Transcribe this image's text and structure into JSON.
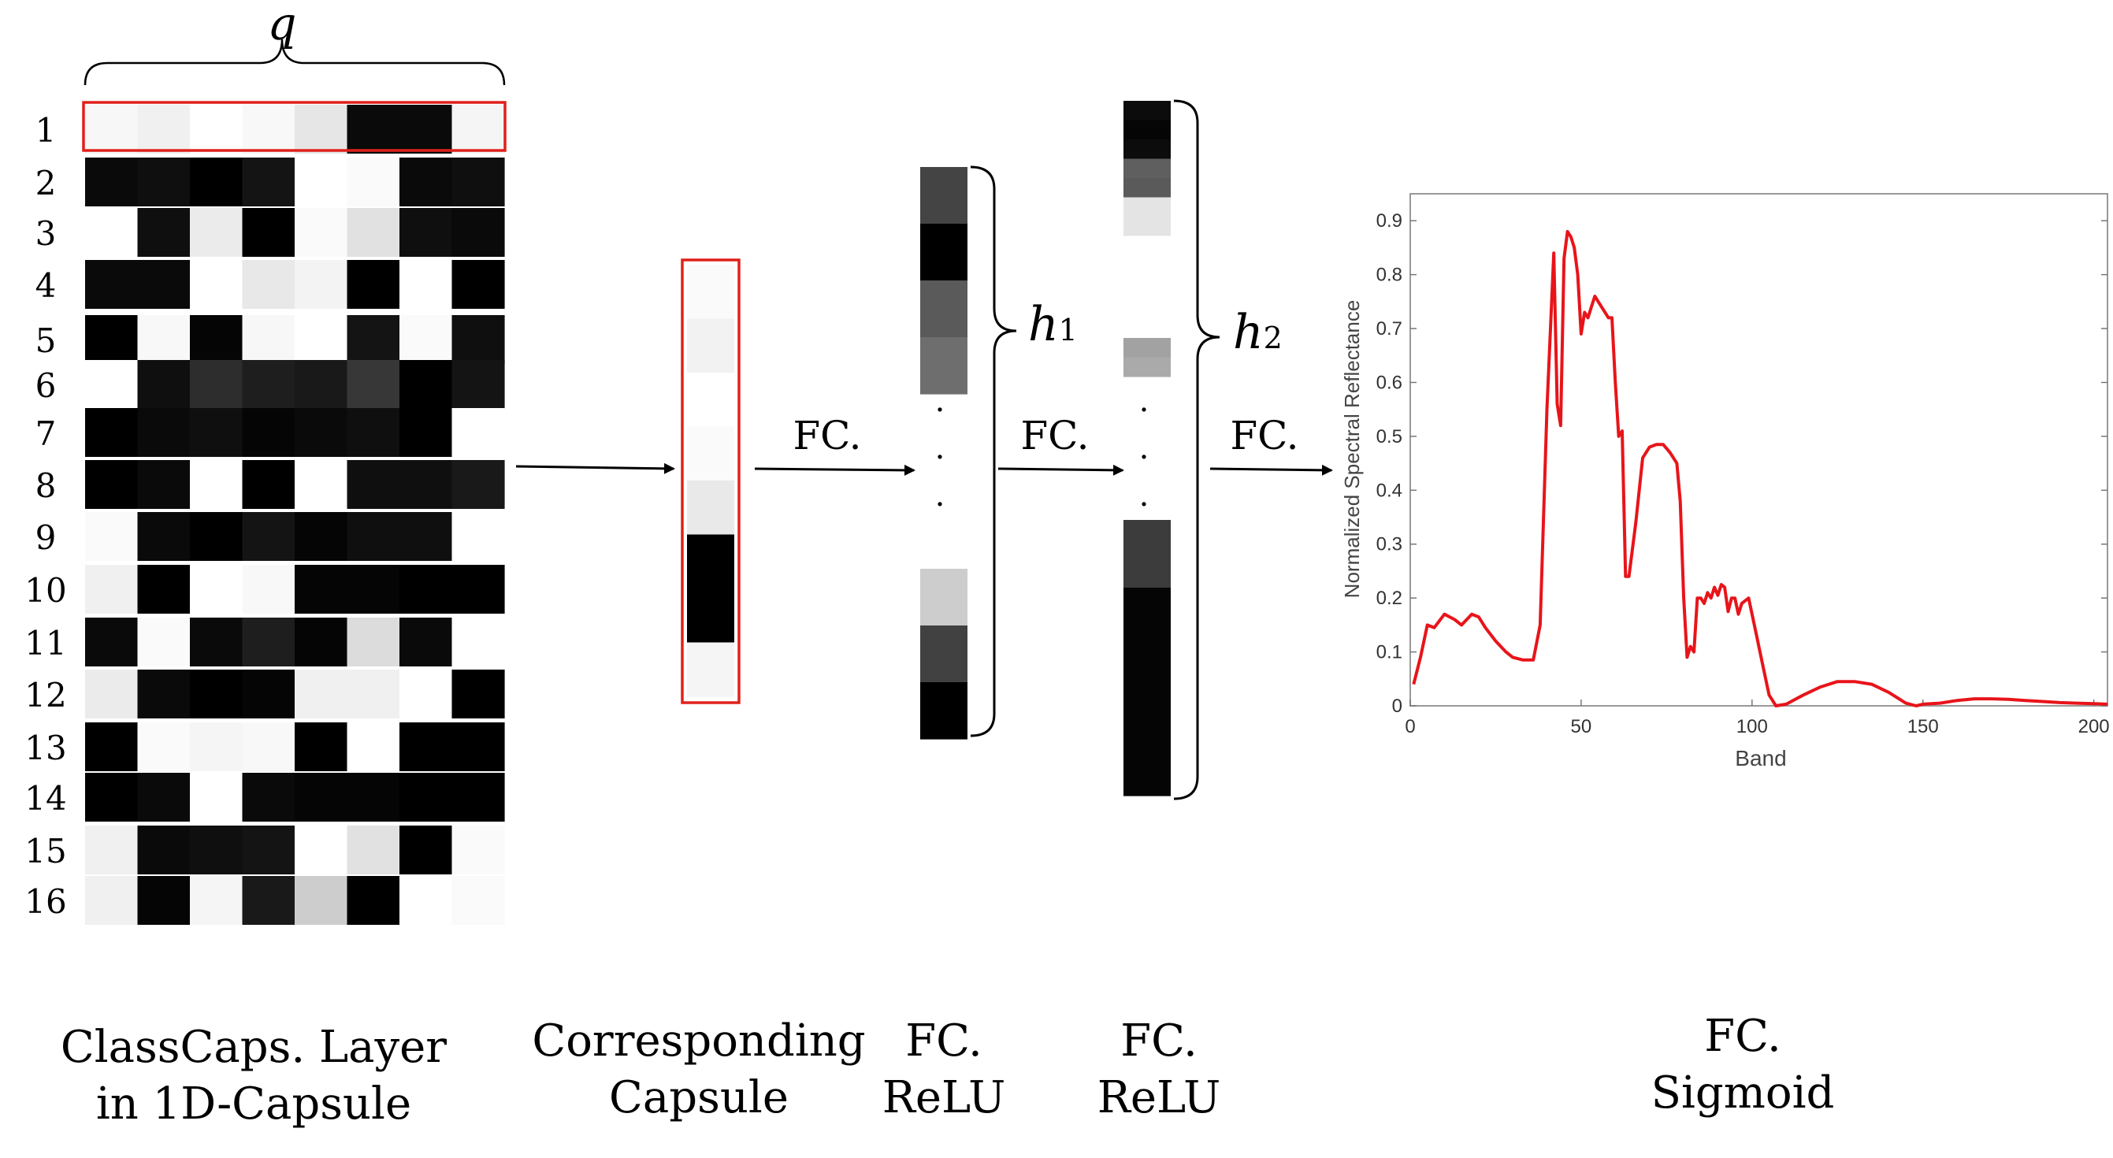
{
  "matrix_label": "q",
  "row_labels": [
    "1",
    "2",
    "3",
    "4",
    "5",
    "6",
    "7",
    "8",
    "9",
    "10",
    "11",
    "12",
    "13",
    "14",
    "15",
    "16"
  ],
  "capsule_matrix": [
    [
      247,
      240,
      255,
      248,
      230,
      10,
      10,
      245
    ],
    [
      10,
      15,
      0,
      20,
      255,
      250,
      10,
      15
    ],
    [
      255,
      15,
      235,
      0,
      250,
      225,
      15,
      10
    ],
    [
      10,
      10,
      255,
      232,
      243,
      0,
      255,
      0
    ],
    [
      0,
      248,
      5,
      247,
      255,
      20,
      250,
      15
    ],
    [
      255,
      15,
      45,
      30,
      25,
      55,
      0,
      20
    ],
    [
      0,
      10,
      15,
      5,
      10,
      15,
      0,
      255
    ],
    [
      0,
      10,
      255,
      0,
      255,
      15,
      15,
      25
    ],
    [
      250,
      10,
      0,
      20,
      5,
      15,
      15,
      255
    ],
    [
      240,
      0,
      255,
      248,
      5,
      5,
      0,
      0
    ],
    [
      10,
      250,
      10,
      30,
      5,
      220,
      10,
      255
    ],
    [
      235,
      10,
      0,
      5,
      240,
      240,
      255,
      0
    ],
    [
      0,
      250,
      245,
      248,
      0,
      255,
      0,
      0
    ],
    [
      0,
      10,
      255,
      10,
      5,
      5,
      0,
      0
    ],
    [
      240,
      10,
      15,
      20,
      255,
      225,
      0,
      250
    ],
    [
      240,
      5,
      245,
      25,
      205,
      0,
      255,
      250
    ]
  ],
  "capsule_vector": [
    250,
    242,
    255,
    250,
    233,
    0,
    0,
    245
  ],
  "h1_top": [
    68,
    0,
    90,
    110
  ],
  "h1_bottom": [
    205,
    65,
    0
  ],
  "h2_top": [
    12,
    5,
    12,
    95,
    90,
    228,
    228,
    255,
    162,
    170
  ],
  "h2_bottom": [
    60,
    5,
    5,
    5,
    5
  ],
  "layer_labels": {
    "h1_main": "h",
    "h1_sub": "1",
    "h2_main": "h",
    "h2_sub": "2",
    "fc1": "FC.",
    "fc2": "FC.",
    "fc3": "FC.",
    "dot": "."
  },
  "captions": {
    "classcaps_line1": "ClassCaps. Layer",
    "classcaps_line2": "in 1D-Capsule",
    "capsule_line1": "Corresponding",
    "capsule_line2": "Capsule",
    "relu1_line1": "FC.",
    "relu1_line2": "ReLU",
    "relu2_line1": "FC.",
    "relu2_line2": "ReLU",
    "sigmoid_line1": "FC.",
    "sigmoid_line2": "Sigmoid"
  },
  "colors": {
    "highlight": "#e0201b",
    "line": "#e8141a",
    "arrow": "#000000"
  },
  "chart_data": {
    "type": "line",
    "title": "",
    "xlabel": "Band",
    "ylabel": "Normalized Spectral Reflectance",
    "xlim": [
      0,
      204
    ],
    "ylim": [
      0,
      0.95
    ],
    "xticks": [
      0,
      50,
      100,
      150,
      200
    ],
    "yticks": [
      0,
      0.1,
      0.2,
      0.3,
      0.4,
      0.5,
      0.6,
      0.7,
      0.8,
      0.9
    ],
    "xtick_labels": [
      "0",
      "50",
      "100",
      "150",
      "200"
    ],
    "ytick_labels": [
      "0",
      "0.1",
      "0.2",
      "0.3",
      "0.4",
      "0.5",
      "0.6",
      "0.7",
      "0.8",
      "0.9"
    ],
    "grid": false,
    "series": [
      {
        "x": [
          1,
          3,
          5,
          7,
          10,
          13,
          15,
          18,
          20,
          22,
          25,
          28,
          30,
          33,
          36,
          38,
          40,
          42,
          43,
          44,
          45,
          46,
          47,
          48,
          49,
          50,
          51,
          52,
          53,
          54,
          56,
          58,
          59,
          60,
          61,
          62,
          63,
          64,
          66,
          68,
          70,
          72,
          74,
          76,
          78,
          79,
          80,
          81,
          82,
          83,
          84,
          85,
          86,
          87,
          88,
          89,
          90,
          91,
          92,
          93,
          94,
          95,
          96,
          97,
          99,
          101,
          103,
          105,
          107,
          110,
          115,
          120,
          125,
          130,
          135,
          140,
          145,
          148,
          150,
          155,
          160,
          165,
          170,
          175,
          180,
          185,
          190,
          195,
          200,
          204
        ],
        "y": [
          0.04,
          0.09,
          0.15,
          0.145,
          0.17,
          0.16,
          0.15,
          0.17,
          0.165,
          0.145,
          0.12,
          0.1,
          0.09,
          0.085,
          0.085,
          0.15,
          0.55,
          0.84,
          0.56,
          0.52,
          0.83,
          0.88,
          0.87,
          0.85,
          0.8,
          0.69,
          0.73,
          0.72,
          0.74,
          0.76,
          0.74,
          0.72,
          0.72,
          0.6,
          0.5,
          0.51,
          0.24,
          0.24,
          0.34,
          0.46,
          0.48,
          0.485,
          0.485,
          0.47,
          0.45,
          0.38,
          0.2,
          0.09,
          0.11,
          0.1,
          0.2,
          0.2,
          0.19,
          0.21,
          0.2,
          0.22,
          0.205,
          0.225,
          0.22,
          0.175,
          0.2,
          0.2,
          0.17,
          0.19,
          0.2,
          0.14,
          0.08,
          0.02,
          0.0,
          0.003,
          0.02,
          0.035,
          0.045,
          0.045,
          0.04,
          0.025,
          0.005,
          0.0,
          0.003,
          0.005,
          0.01,
          0.013,
          0.013,
          0.012,
          0.01,
          0.008,
          0.006,
          0.005,
          0.004,
          0.003
        ]
      }
    ]
  }
}
